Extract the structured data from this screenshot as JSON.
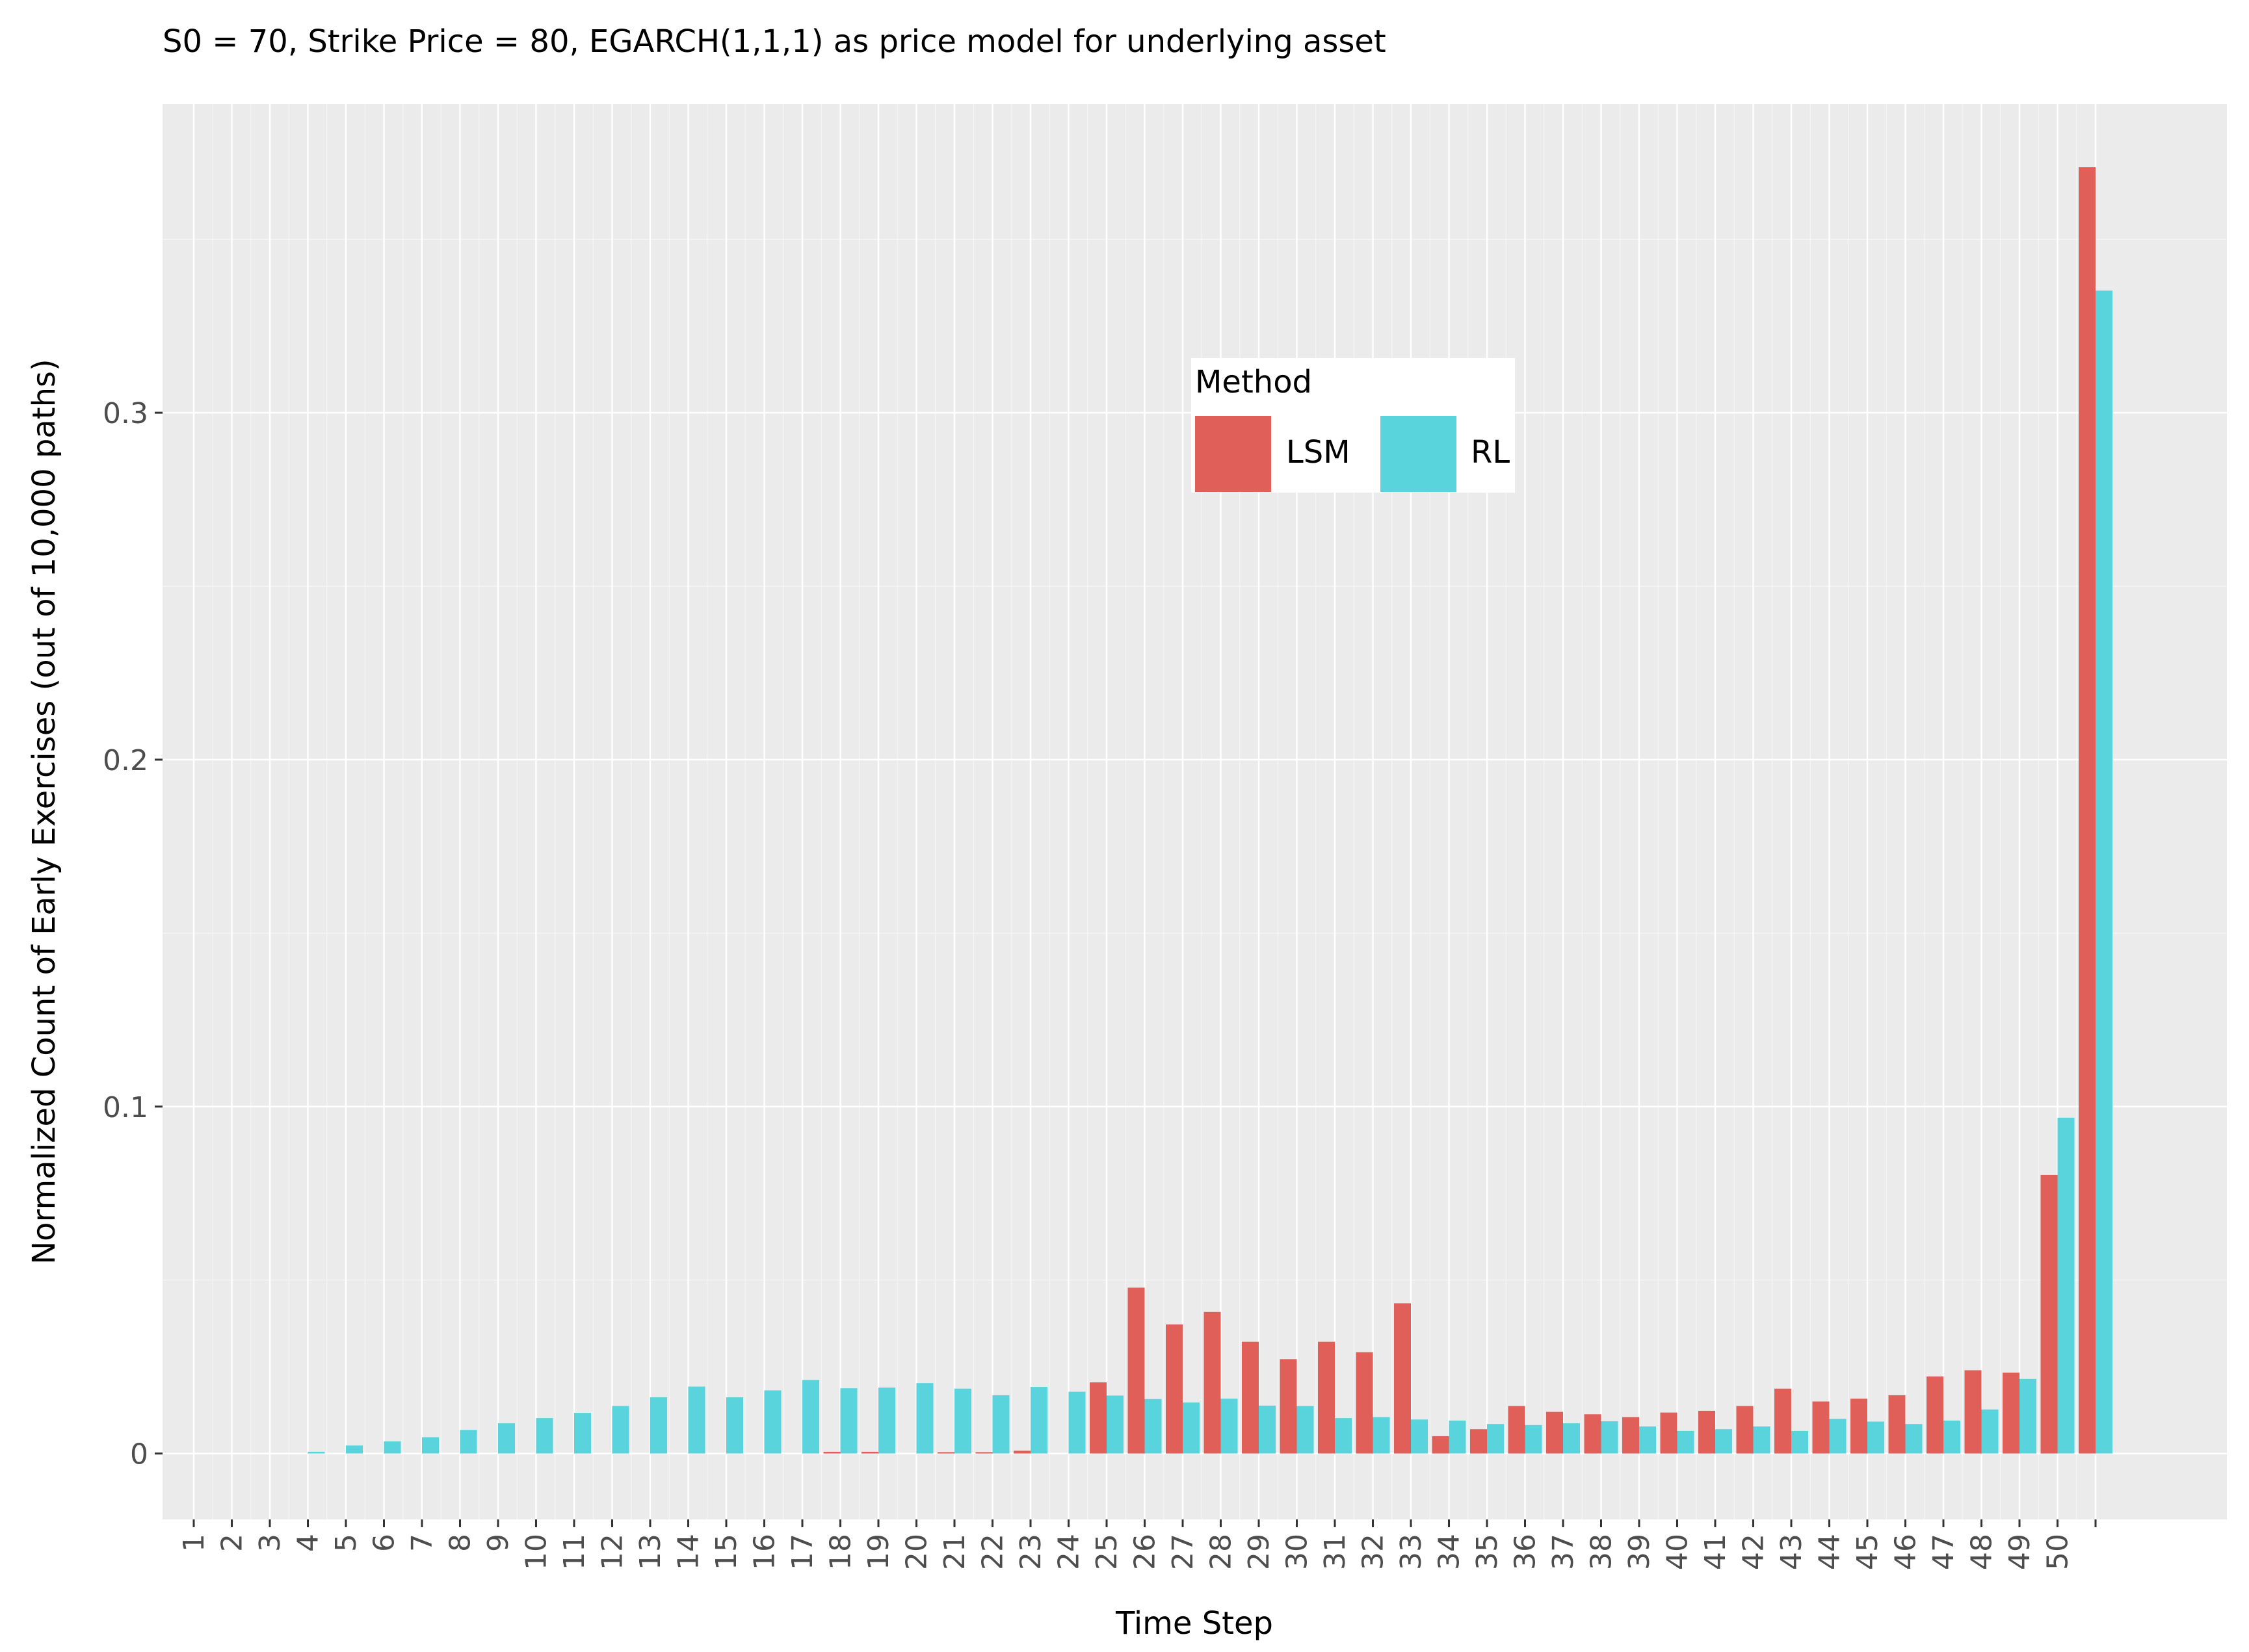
{
  "chart_data": {
    "type": "bar",
    "title": "S0 = 70, Strike Price = 80, EGARCH(1,1,1) as price model for underlying asset",
    "xlabel": "Time Step",
    "ylabel": "Normalized Count of Early Exercises (out of 10,000 paths)",
    "categories": [
      "1",
      "2",
      "3",
      "4",
      "5",
      "6",
      "7",
      "8",
      "9",
      "10",
      "11",
      "12",
      "13",
      "14",
      "15",
      "16",
      "17",
      "18",
      "19",
      "20",
      "21",
      "22",
      "23",
      "24",
      "25",
      "26",
      "27",
      "28",
      "29",
      "30",
      "31",
      "32",
      "33",
      "34",
      "35",
      "36",
      "37",
      "38",
      "39",
      "40",
      "41",
      "42",
      "43",
      "44",
      "45",
      "46",
      "47",
      "48",
      "49",
      "50",
      ""
    ],
    "yticks": [
      0,
      0.1,
      0.2,
      0.3
    ],
    "ytick_labels": [
      "0",
      "0.1",
      "0.2",
      "0.3"
    ],
    "ylim": [
      -0.019,
      0.389
    ],
    "grid": true,
    "legend": {
      "title": "Method",
      "position": "top-center"
    },
    "series": [
      {
        "name": "LSM",
        "color": "#e06059",
        "values": [
          0,
          0,
          0,
          0,
          0,
          0,
          0,
          0,
          0,
          0,
          0,
          0,
          0,
          0,
          0,
          0,
          0,
          0.0005,
          0.0005,
          0,
          0.0004,
          0.0004,
          0.0008,
          0,
          0.0205,
          0.0478,
          0.0372,
          0.0408,
          0.0322,
          0.0272,
          0.0322,
          0.0292,
          0.0433,
          0.005,
          0.007,
          0.0137,
          0.012,
          0.0113,
          0.0105,
          0.0118,
          0.0123,
          0.0137,
          0.0187,
          0.015,
          0.0158,
          0.0168,
          0.0222,
          0.024,
          0.0233,
          0.0803,
          0.3708
        ]
      },
      {
        "name": "RL",
        "color": "#59d3dc",
        "values": [
          0,
          0,
          0,
          0.0005,
          0.0023,
          0.0035,
          0.0047,
          0.0068,
          0.0087,
          0.0102,
          0.0117,
          0.0137,
          0.0162,
          0.0193,
          0.0162,
          0.0182,
          0.0212,
          0.0188,
          0.019,
          0.0203,
          0.0187,
          0.0168,
          0.0192,
          0.0178,
          0.0167,
          0.0157,
          0.0147,
          0.0158,
          0.0138,
          0.0137,
          0.0102,
          0.0105,
          0.0098,
          0.0095,
          0.0085,
          0.0082,
          0.0087,
          0.0093,
          0.0078,
          0.0065,
          0.007,
          0.0078,
          0.0065,
          0.01,
          0.0092,
          0.0085,
          0.0095,
          0.0127,
          0.0215,
          0.0968,
          0.3352
        ]
      }
    ]
  }
}
